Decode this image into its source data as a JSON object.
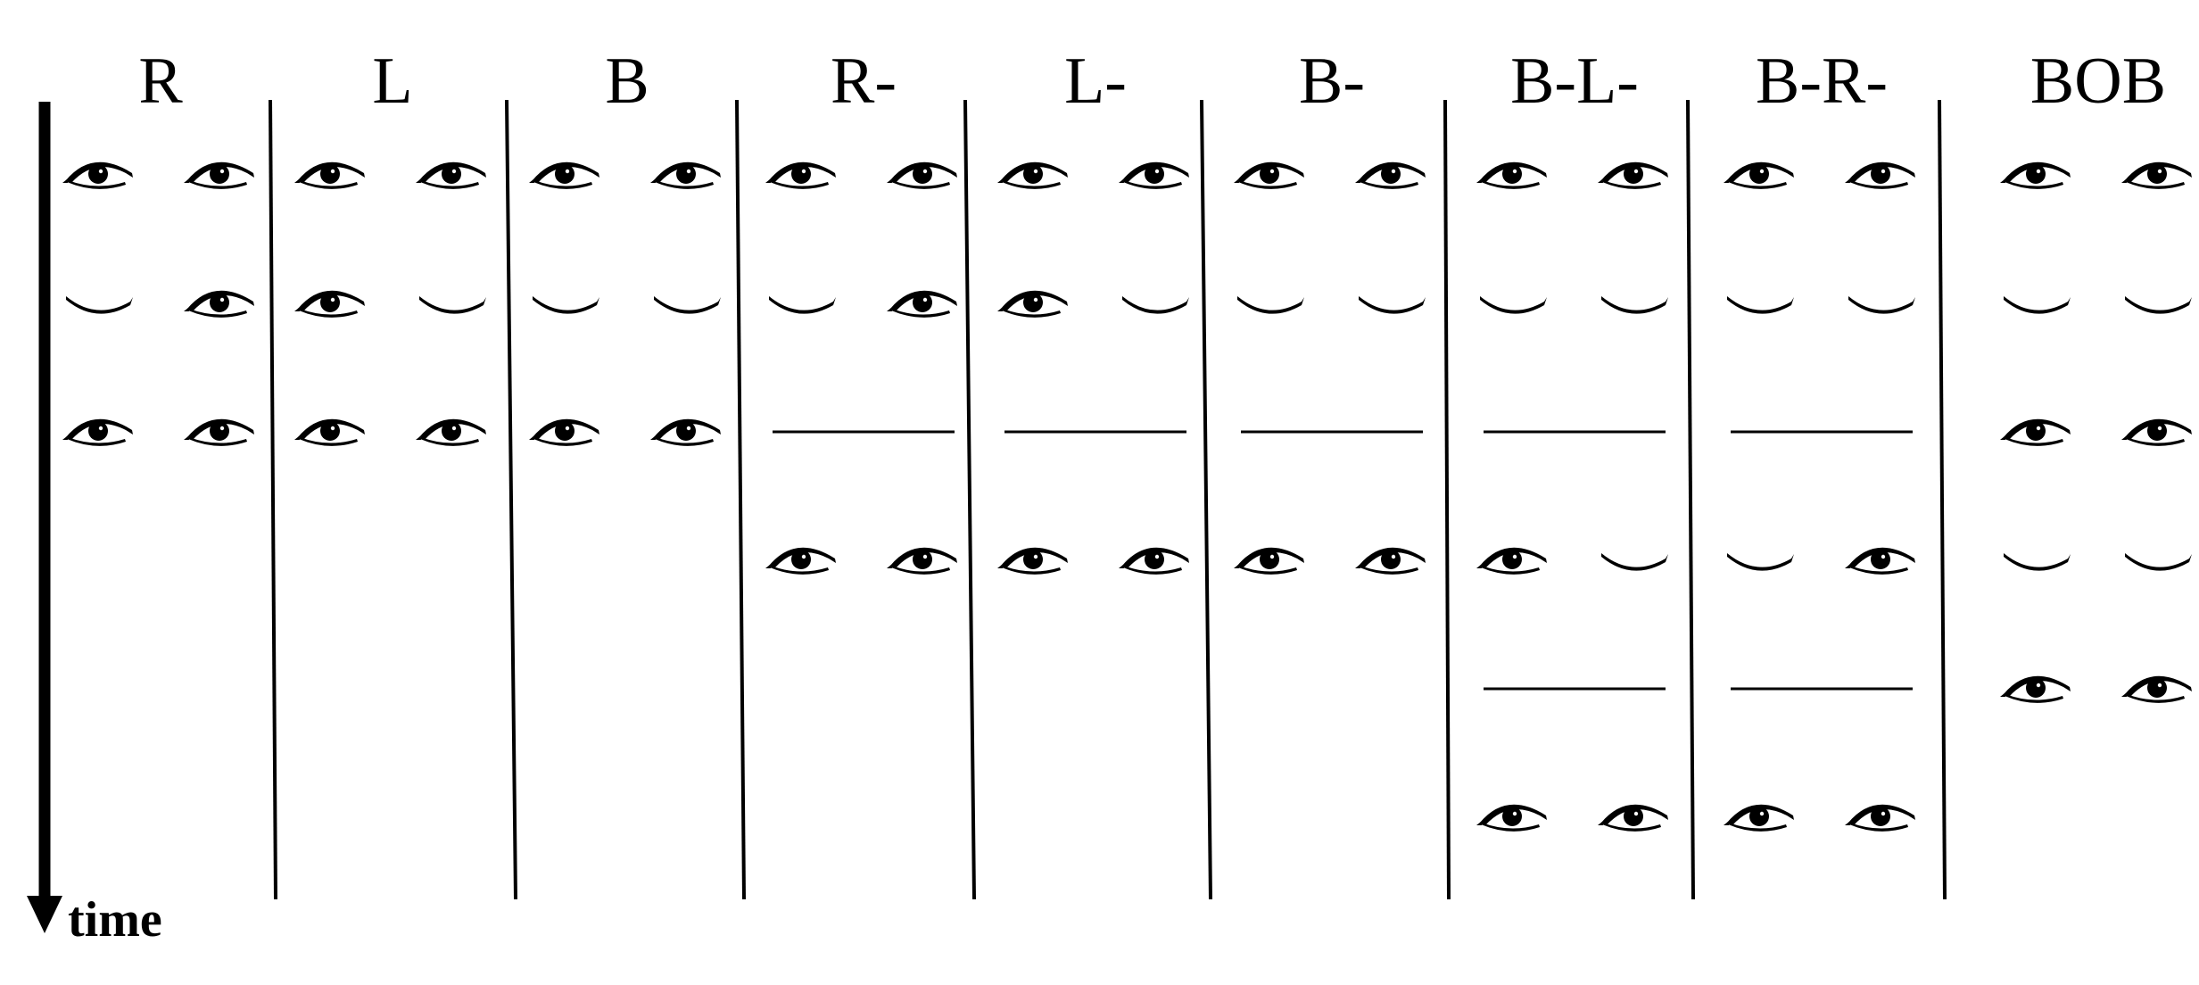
{
  "time_axis": {
    "label": "time"
  },
  "columns": [
    {
      "title": "R",
      "sequence": [
        [
          "open",
          "open"
        ],
        [
          "closed",
          "open"
        ],
        [
          "open",
          "open"
        ]
      ]
    },
    {
      "title": "L",
      "sequence": [
        [
          "open",
          "open"
        ],
        [
          "open",
          "closed"
        ],
        [
          "open",
          "open"
        ]
      ]
    },
    {
      "title": "B",
      "sequence": [
        [
          "open",
          "open"
        ],
        [
          "closed",
          "closed"
        ],
        [
          "open",
          "open"
        ]
      ]
    },
    {
      "title": "R-",
      "sequence": [
        [
          "open",
          "open"
        ],
        [
          "closed",
          "open"
        ],
        [
          "gap"
        ],
        [
          "open",
          "open"
        ]
      ]
    },
    {
      "title": "L-",
      "sequence": [
        [
          "open",
          "open"
        ],
        [
          "open",
          "closed"
        ],
        [
          "gap"
        ],
        [
          "open",
          "open"
        ]
      ]
    },
    {
      "title": "B-",
      "sequence": [
        [
          "open",
          "open"
        ],
        [
          "closed",
          "closed"
        ],
        [
          "gap"
        ],
        [
          "open",
          "open"
        ]
      ]
    },
    {
      "title": "B-L-",
      "sequence": [
        [
          "open",
          "open"
        ],
        [
          "closed",
          "closed"
        ],
        [
          "gap"
        ],
        [
          "open",
          "closed"
        ],
        [
          "gap"
        ],
        [
          "open",
          "open"
        ]
      ]
    },
    {
      "title": "B-R-",
      "sequence": [
        [
          "open",
          "open"
        ],
        [
          "closed",
          "closed"
        ],
        [
          "gap"
        ],
        [
          "closed",
          "open"
        ],
        [
          "gap"
        ],
        [
          "open",
          "open"
        ]
      ]
    },
    {
      "title": "BOB",
      "sequence": [
        [
          "open",
          "open"
        ],
        [
          "closed",
          "closed"
        ],
        [
          "open",
          "open"
        ],
        [
          "closed",
          "closed"
        ],
        [
          "open",
          "open"
        ]
      ]
    }
  ]
}
